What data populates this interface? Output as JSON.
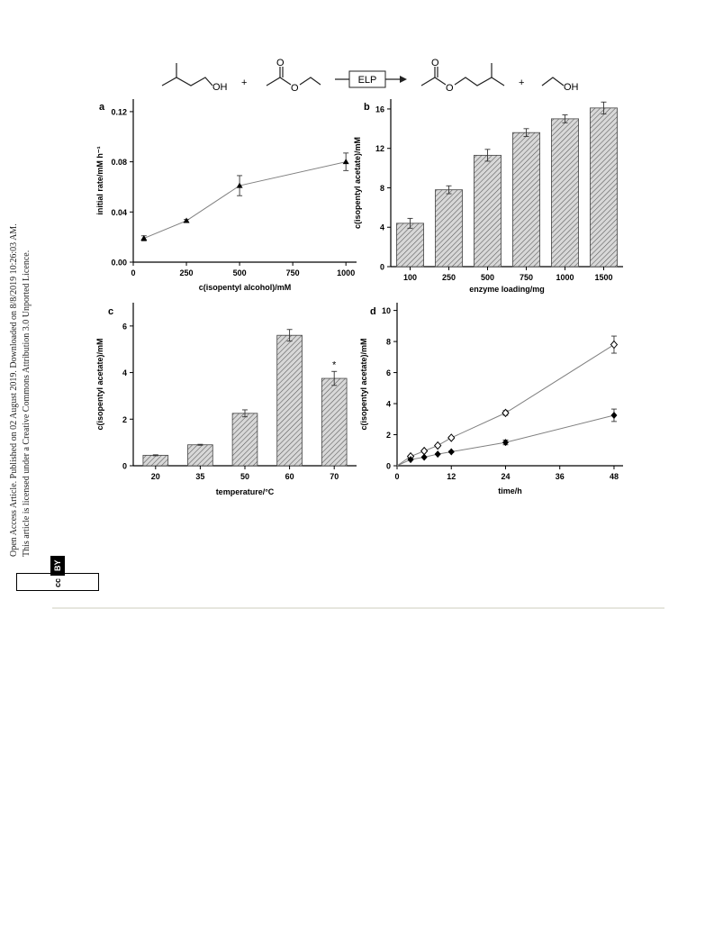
{
  "sidebar": {
    "line1": "Open Access Article. Published on 02 August 2019. Downloaded on 8/8/2019 10:26:03 AM.",
    "line2": "This article is licensed under a Creative Commons Attribution 3.0 Unported Licence.",
    "badge_cc": "cc",
    "badge_by": "BY"
  },
  "scheme": {
    "reactant1_label": "OH",
    "plus1": "+",
    "catalyst": "ELP",
    "plus2": "+",
    "product2_label": "OH",
    "oxygen_label": "O"
  },
  "colors": {
    "axis": "#000000",
    "line": "#808080",
    "hatch": "#555555",
    "bar_fill": "#d8d8d8"
  },
  "chart_data": [
    {
      "panel": "a",
      "type": "line",
      "title": "",
      "xlabel": "c(isopentyl alcohol)/mM",
      "ylabel": "initial rate/mM h⁻¹",
      "xlim": [
        0,
        1050
      ],
      "ylim": [
        0,
        0.13
      ],
      "xticks": [
        0,
        250,
        500,
        750,
        1000
      ],
      "yticks": [
        "0.00",
        "0.04",
        "0.08",
        "0.12"
      ],
      "series": [
        {
          "marker": "triangle",
          "x": [
            50,
            250,
            500,
            1000
          ],
          "y": [
            0.019,
            0.033,
            0.061,
            0.08
          ],
          "err": [
            0.002,
            0.001,
            0.008,
            0.007
          ]
        }
      ]
    },
    {
      "panel": "b",
      "type": "bar",
      "title": "",
      "xlabel": "enzyme loading/mg",
      "ylabel": "c(isopentyl acetate)/mM",
      "ylim": [
        0,
        17
      ],
      "yticks": [
        "0",
        "4",
        "8",
        "12",
        "16"
      ],
      "categories": [
        "100",
        "250",
        "500",
        "750",
        "1000",
        "1500"
      ],
      "values": [
        4.4,
        7.8,
        11.3,
        13.6,
        15.0,
        16.1
      ],
      "err": [
        0.5,
        0.4,
        0.6,
        0.4,
        0.4,
        0.6
      ]
    },
    {
      "panel": "c",
      "type": "bar",
      "title": "",
      "xlabel": "temperature/°C",
      "ylabel": "c(isopentyl acetate)/mM",
      "ylim": [
        0,
        7
      ],
      "yticks": [
        "0",
        "2",
        "4",
        "6"
      ],
      "categories": [
        "20",
        "35",
        "50",
        "60",
        "70"
      ],
      "values": [
        0.45,
        0.9,
        2.25,
        5.6,
        3.75
      ],
      "err": [
        0.02,
        0.02,
        0.15,
        0.25,
        0.3
      ],
      "annotation": "*"
    },
    {
      "panel": "d",
      "type": "line",
      "title": "",
      "xlabel": "time/h",
      "ylabel": "c(isopentyl acetate)/mM",
      "xlim": [
        0,
        50
      ],
      "ylim": [
        0,
        10.5
      ],
      "xticks": [
        0,
        12,
        24,
        36,
        48
      ],
      "yticks": [
        "0",
        "2",
        "4",
        "6",
        "8",
        "10"
      ],
      "series": [
        {
          "marker": "open-diamond",
          "x": [
            0,
            3,
            6,
            9,
            12,
            24,
            48
          ],
          "y": [
            0,
            0.6,
            0.95,
            1.3,
            1.8,
            3.4,
            7.8
          ],
          "err": [
            0,
            0.05,
            0.05,
            0.05,
            0.08,
            0.15,
            0.55
          ]
        },
        {
          "marker": "filled-diamond",
          "x": [
            0,
            3,
            6,
            9,
            12,
            24,
            48
          ],
          "y": [
            0,
            0.4,
            0.55,
            0.75,
            0.9,
            1.5,
            3.25
          ],
          "err": [
            0,
            0.03,
            0.03,
            0.03,
            0.05,
            0.15,
            0.4
          ]
        }
      ]
    }
  ]
}
